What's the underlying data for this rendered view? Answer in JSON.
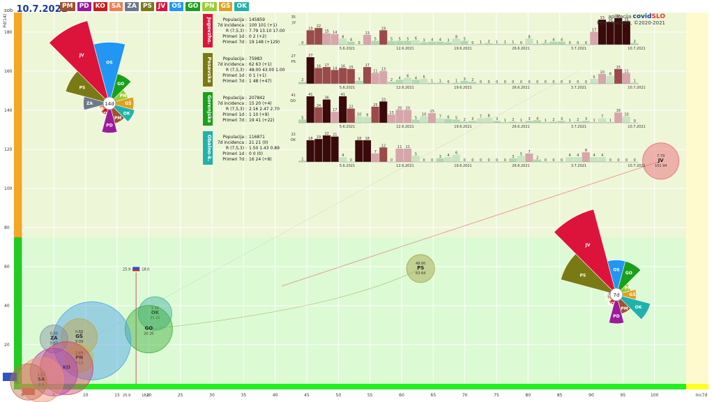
{
  "header": {
    "dow": "sob",
    "date": "10.7.2021",
    "regions": [
      {
        "code": "PM",
        "color": "#a0522d"
      },
      {
        "code": "PD",
        "color": "#9b1b9b"
      },
      {
        "code": "KO",
        "color": "#c81e1e"
      },
      {
        "code": "SA",
        "color": "#f08050"
      },
      {
        "code": "ZA",
        "color": "#6c7a8a"
      },
      {
        "code": "PS",
        "color": "#7a7a14"
      },
      {
        "code": "JV",
        "color": "#dc143c"
      },
      {
        "code": "OS",
        "color": "#2196f3"
      },
      {
        "code": "GO",
        "color": "#1aa01a"
      },
      {
        "code": "PN",
        "color": "#9acd32"
      },
      {
        "code": "GŠ",
        "color": "#e0a020"
      },
      {
        "code": "OK",
        "color": "#20b2aa"
      }
    ]
  },
  "credit": {
    "app_prefix": "aplikacija",
    "app_a": "covid",
    "app_b": "SLO",
    "author": "Peter Malovrh, ©2020-2021"
  },
  "chart_data": {
    "type": "scatter",
    "ylabel": "Pd(14)",
    "xlabel": "Inc7d",
    "xlim": [
      0,
      105
    ],
    "ylim": [
      0,
      190
    ],
    "xticks": [
      0,
      5,
      10,
      15,
      20,
      25,
      30,
      35,
      40,
      45,
      50,
      55,
      60,
      65,
      70,
      75,
      80,
      85,
      90,
      95,
      100
    ],
    "yticks": [
      20,
      40,
      60,
      80,
      100,
      120,
      140,
      160,
      180
    ],
    "bubbles": [
      {
        "code": "JV",
        "x": 101,
        "y": 114,
        "r": 26,
        "color": "#e86070",
        "l1": "7.79",
        "l2": "JV",
        "l3": "101 94"
      },
      {
        "code": "PS",
        "x": 63,
        "y": 59,
        "r": 20,
        "color": "#a0a040",
        "l1": "48.00",
        "l2": "PS",
        "l3": "63 64"
      },
      {
        "code": "OK",
        "x": 21,
        "y": 36,
        "r": 24,
        "color": "#40b0a0",
        "l1": "1.50",
        "l2": "OK",
        "l3": "21 21"
      },
      {
        "code": "GO",
        "x": 20,
        "y": 28,
        "r": 34,
        "color": "#3cae3c",
        "l1": "",
        "l2": "GO",
        "l3": "20 20"
      },
      {
        "code": "OS",
        "x": 11,
        "y": 22,
        "r": 56,
        "color": "#4aa0ee",
        "l1": "",
        "l2": "",
        "l3": ""
      },
      {
        "code": "GŠ",
        "x": 9,
        "y": 24,
        "r": 26,
        "color": "#c8a040",
        "l1": "0.69",
        "l2": "GŠ",
        "l3": "9 09"
      },
      {
        "code": "ZA",
        "x": 5,
        "y": 23,
        "r": 20,
        "color": "#8090a0",
        "l1": "0.30",
        "l2": "ZA",
        "l3": "5 07"
      },
      {
        "code": "PN",
        "x": 9,
        "y": 13,
        "r": 20,
        "color": "#b8c040",
        "l1": "2.49",
        "l2": "PN",
        "l3": "9 13"
      },
      {
        "code": "KO",
        "x": 7,
        "y": 8,
        "r": 38,
        "color": "#d04060",
        "l1": "",
        "l2": "KO",
        "l3": ""
      },
      {
        "code": "PD",
        "x": 5,
        "y": 6,
        "r": 34,
        "color": "#b040b0",
        "l1": "",
        "l2": "",
        "l3": ""
      },
      {
        "code": "SA",
        "x": 3,
        "y": 2,
        "r": 32,
        "color": "#f09070",
        "l1": "1.17",
        "l2": "SA",
        "l3": "3 5"
      },
      {
        "code": "PM",
        "x": 1,
        "y": 1,
        "r": 26,
        "color": "#c07050",
        "l1": "",
        "l2": "",
        "l3": ""
      }
    ],
    "slovenia_marker": {
      "x": 18,
      "y": 57,
      "top_label": "25.9",
      "bottom_label": "18.0"
    }
  },
  "roses": {
    "center14": "14d",
    "center7": "7d",
    "petals14": [
      {
        "code": "GO",
        "val": 35
      },
      {
        "code": "PN",
        "val": 22
      },
      {
        "code": "GŠ",
        "val": 28
      },
      {
        "code": "OK",
        "val": 30
      },
      {
        "code": "PM",
        "val": 24
      },
      {
        "code": "PD",
        "val": 34
      },
      {
        "code": "KO",
        "val": 14
      },
      {
        "code": "SA",
        "val": 12
      },
      {
        "code": "ZA",
        "val": 30
      },
      {
        "code": "PS",
        "val": 52
      },
      {
        "code": "JV",
        "val": 98
      },
      {
        "code": "OS",
        "val": 70
      }
    ],
    "petals7": [
      {
        "code": "GO",
        "val": 45
      },
      {
        "code": "PN",
        "val": 20
      },
      {
        "code": "GŠ",
        "val": 26
      },
      {
        "code": "OK",
        "val": 46
      },
      {
        "code": "PM",
        "val": 26
      },
      {
        "code": "PD",
        "val": 38
      },
      {
        "code": "KO",
        "val": 14
      },
      {
        "code": "SA",
        "val": 12
      },
      {
        "code": "ZA",
        "val": 12
      },
      {
        "code": "PS",
        "val": 75
      },
      {
        "code": "JV",
        "val": 115
      },
      {
        "code": "OS",
        "val": 45
      }
    ]
  },
  "panels": [
    {
      "name": "Jugovzho.",
      "code": "JV",
      "color": "#dc143c",
      "stats": [
        [
          "Populacija",
          "145859"
        ],
        [
          "7d incidenca",
          "100 101 (+1)"
        ],
        [
          "R (7,5,3)",
          "7.79 13.10 17.00"
        ],
        [
          "Primeri 1d",
          "0 2 (+2)"
        ],
        [
          "Primeri 7d",
          "19 148 (+129)"
        ]
      ],
      "max": "35",
      "dates": [
        "5.6.2021",
        "12.6.2021",
        "19.6.2021",
        "26.6.2021",
        "3.7.2021",
        "10.7.2021"
      ],
      "bars": [
        0,
        19,
        22,
        15,
        14,
        8,
        4,
        0,
        13,
        5,
        19,
        5,
        5,
        5,
        6,
        3,
        4,
        4,
        3,
        8,
        5,
        0,
        1,
        2,
        1,
        1,
        1,
        0,
        8,
        1,
        2,
        4,
        4,
        0,
        0,
        0,
        17,
        33,
        30,
        35,
        31,
        2
      ]
    },
    {
      "name": "Posavska",
      "code": "PS",
      "color": "#7a7a14",
      "stats": [
        [
          "Populacija",
          "75983"
        ],
        [
          "7d incidenca",
          "62 63 (+1)"
        ],
        [
          "R (7,5,3)",
          "48.00 43.00 1.00"
        ],
        [
          "Primeri 1d",
          "0 1 (+1)"
        ],
        [
          "Primeri 7d",
          "1 48 (+47)"
        ]
      ],
      "max": "27",
      "dates": [
        "5.6.2021",
        "12.6.2021",
        "19.6.2021",
        "26.6.2021",
        "3.7.2021",
        "10.7.2021"
      ],
      "bars": [
        2,
        27,
        16,
        17,
        14,
        16,
        15,
        3,
        17,
        11,
        13,
        2,
        4,
        6,
        4,
        5,
        1,
        1,
        0,
        1,
        3,
        2,
        0,
        0,
        0,
        0,
        0,
        0,
        0,
        0,
        0,
        0,
        0,
        0,
        0,
        0,
        5,
        10,
        8,
        15,
        11,
        1
      ]
    },
    {
      "name": "Gorenjska",
      "code": "GO",
      "color": "#1aa01a",
      "stats": [
        [
          "Populacija",
          "207842"
        ],
        [
          "7d incidenca",
          "15 20 (+4)"
        ],
        [
          "R (7,5,3)",
          "2.16 2.47 2.70"
        ],
        [
          "Primeri 1d",
          "1 10 (+9)"
        ],
        [
          "Primeri 7d",
          "19 41 (+22)"
        ]
      ],
      "max": "41",
      "dates": [
        "5.6.2021",
        "12.6.2021",
        "19.6.2021",
        "26.6.2021",
        "3.7.2021",
        "10.7.2021"
      ],
      "bars": [
        5,
        41,
        24,
        36,
        17,
        41,
        22,
        10,
        9,
        25,
        33,
        13,
        20,
        20,
        5,
        10,
        15,
        7,
        6,
        5,
        2,
        3,
        7,
        8,
        3,
        1,
        2,
        1,
        3,
        4,
        1,
        2,
        3,
        1,
        2,
        3,
        1,
        7,
        1,
        16,
        10,
        0
      ]
    },
    {
      "name": "Obalno-k.",
      "code": "OK",
      "color": "#20b2aa",
      "stats": [
        [
          "Populacija",
          "116871"
        ],
        [
          "7d incidenca",
          "21 21 (0)"
        ],
        [
          "R (7,5,3)",
          "1.50 1.43 0.89"
        ],
        [
          "Primeri 1d",
          "0 0 (0)"
        ],
        [
          "Primeri 7d",
          "16 24 (+8)"
        ]
      ],
      "max": "22",
      "dates": [
        "5.6.2021",
        "12.6.2021",
        "19.6.2021",
        "26.6.2021",
        "3.7.2021",
        "10.7.2021"
      ],
      "bars": [
        1,
        18,
        19,
        22,
        21,
        4,
        0,
        18,
        18,
        7,
        12,
        0,
        11,
        11,
        5,
        0,
        0,
        3,
        4,
        6,
        0,
        0,
        0,
        0,
        0,
        0,
        3,
        5,
        7,
        2,
        0,
        0,
        0,
        4,
        4,
        8,
        4,
        4,
        0,
        0,
        0,
        0
      ]
    }
  ]
}
